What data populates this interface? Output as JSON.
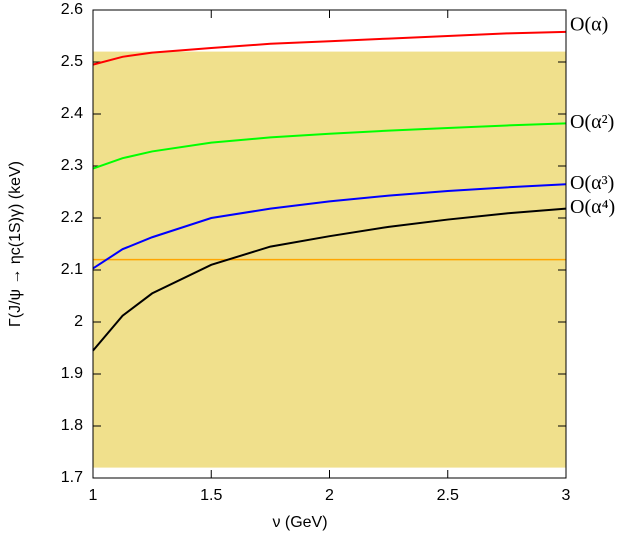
{
  "chart_data": {
    "type": "line",
    "xlabel": "ν (GeV)",
    "ylabel": "Γ(J/ψ → ηc(1S)γ) (keV)",
    "x": [
      1,
      1.125,
      1.25,
      1.5,
      1.75,
      2,
      2.25,
      2.5,
      2.75,
      3
    ],
    "series": [
      {
        "name": "O(α)",
        "color": "#ff0000",
        "values": [
          2.495,
          2.51,
          2.518,
          2.527,
          2.535,
          2.54,
          2.545,
          2.55,
          2.555,
          2.558
        ]
      },
      {
        "name": "O(α²)",
        "color": "#00ff00",
        "values": [
          2.295,
          2.315,
          2.328,
          2.345,
          2.355,
          2.362,
          2.368,
          2.373,
          2.378,
          2.382
        ]
      },
      {
        "name": "O(α³)",
        "color": "#0000ff",
        "values": [
          2.103,
          2.14,
          2.163,
          2.2,
          2.218,
          2.232,
          2.243,
          2.252,
          2.259,
          2.265
        ]
      },
      {
        "name": "O(α⁴)",
        "color": "#000000",
        "values": [
          1.945,
          2.012,
          2.055,
          2.11,
          2.145,
          2.165,
          2.183,
          2.197,
          2.209,
          2.218
        ]
      }
    ],
    "band": [
      1.72,
      2.52
    ],
    "band_color": "#f0e08c",
    "reference_line": 2.12,
    "reference_color": "#ffa500",
    "xlim": [
      1,
      3
    ],
    "xticks": [
      1,
      1.5,
      2,
      2.5,
      3
    ],
    "ylim": [
      1.7,
      2.6
    ],
    "yticks": [
      1.7,
      1.8,
      1.9,
      2,
      2.1,
      2.2,
      2.3,
      2.4,
      2.5,
      2.6
    ]
  }
}
